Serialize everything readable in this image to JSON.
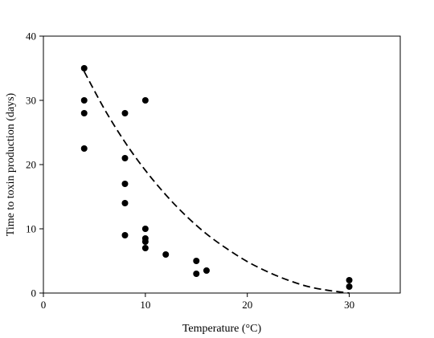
{
  "chart_data": {
    "type": "scatter",
    "title": "",
    "xlabel": "Temperature (°C)",
    "ylabel": "Time to toxin production (days)",
    "xlim": [
      0,
      35
    ],
    "ylim": [
      0,
      40
    ],
    "xticks": [
      "0",
      "10",
      "20",
      "30"
    ],
    "yticks": [
      "0",
      "10",
      "20",
      "30",
      "40"
    ],
    "grid": false,
    "legend": "none",
    "series": [
      {
        "mark": "point",
        "color": "#000000",
        "points": [
          {
            "x": 4,
            "y": 35
          },
          {
            "x": 4,
            "y": 30
          },
          {
            "x": 4,
            "y": 28
          },
          {
            "x": 4,
            "y": 22.5
          },
          {
            "x": 8,
            "y": 28
          },
          {
            "x": 8,
            "y": 21
          },
          {
            "x": 8,
            "y": 17
          },
          {
            "x": 8,
            "y": 14
          },
          {
            "x": 8,
            "y": 9
          },
          {
            "x": 10,
            "y": 30
          },
          {
            "x": 10,
            "y": 10
          },
          {
            "x": 10,
            "y": 8.5
          },
          {
            "x": 10,
            "y": 8
          },
          {
            "x": 10,
            "y": 7
          },
          {
            "x": 12,
            "y": 6
          },
          {
            "x": 15,
            "y": 5
          },
          {
            "x": 15,
            "y": 3
          },
          {
            "x": 16,
            "y": 3.5
          },
          {
            "x": 30,
            "y": 2
          },
          {
            "x": 30,
            "y": 1
          }
        ]
      },
      {
        "mark": "dashed-line",
        "color": "#000000",
        "points": [
          {
            "x": 4,
            "y": 34.5
          },
          {
            "x": 6,
            "y": 28.6
          },
          {
            "x": 8,
            "y": 23.5
          },
          {
            "x": 10,
            "y": 19.1
          },
          {
            "x": 12,
            "y": 15.3
          },
          {
            "x": 14,
            "y": 12.0
          },
          {
            "x": 16,
            "y": 9.2
          },
          {
            "x": 18,
            "y": 6.9
          },
          {
            "x": 20,
            "y": 4.9
          },
          {
            "x": 22,
            "y": 3.3
          },
          {
            "x": 24,
            "y": 2.0
          },
          {
            "x": 26,
            "y": 1.0
          },
          {
            "x": 28,
            "y": 0.4
          },
          {
            "x": 30,
            "y": 0
          }
        ]
      }
    ]
  }
}
